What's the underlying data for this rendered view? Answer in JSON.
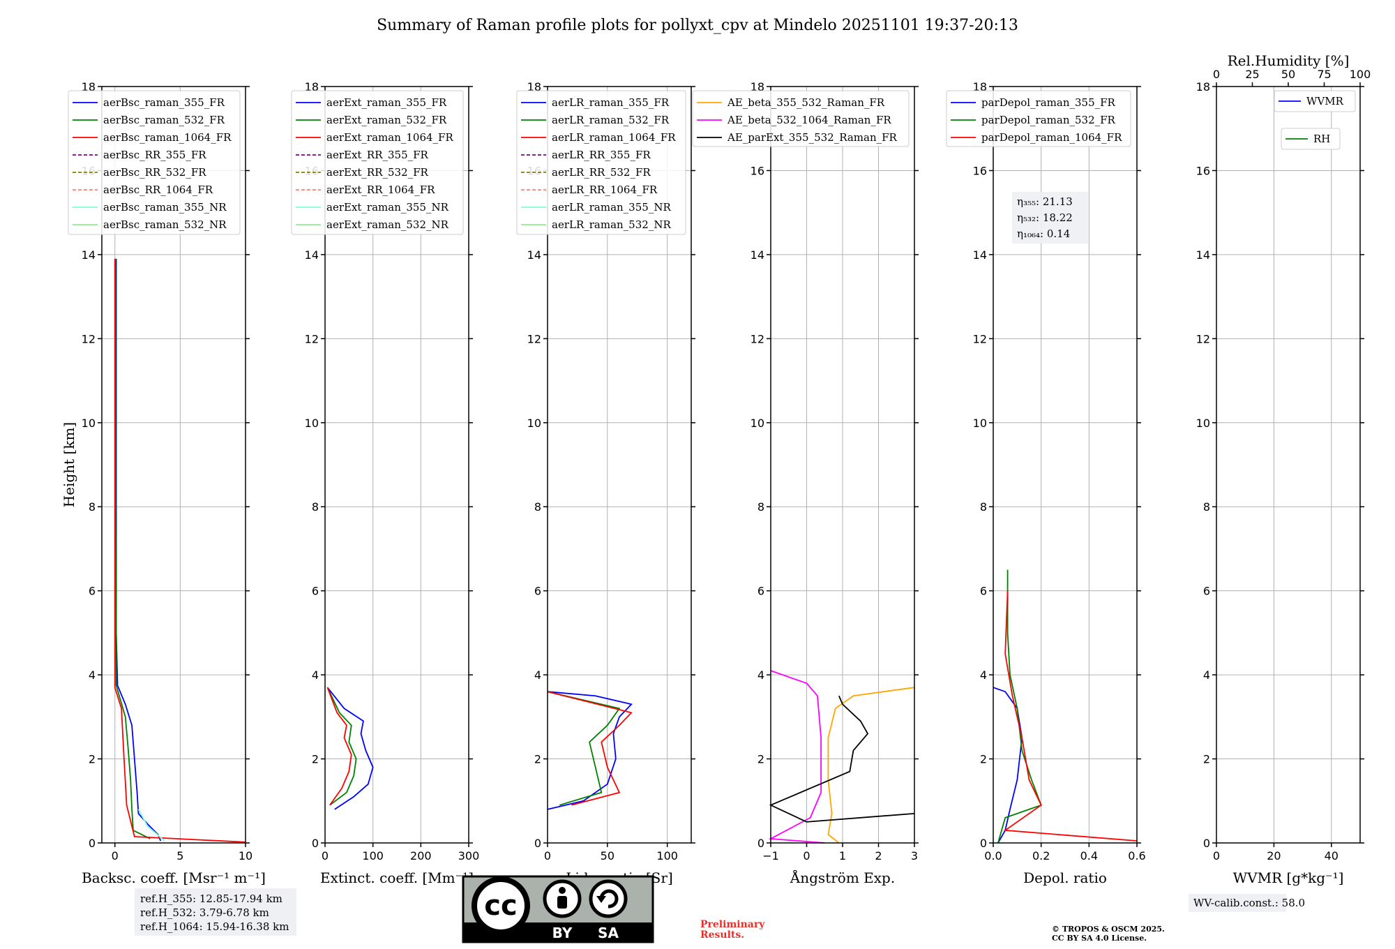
{
  "title": "Summary of Raman profile plots for pollyxt_cpv at Mindelo 20251101 19:37-20:13",
  "chart_data": [
    {
      "type": "line",
      "xlabel": "Backsc. coeff. [Msr⁻¹ m⁻¹]",
      "ylabel": "Height [km]",
      "xlim": [
        -1,
        10
      ],
      "ylim": [
        0,
        18
      ],
      "xticks": [
        "0",
        "5",
        "10"
      ],
      "yticks": [
        "0",
        "2",
        "4",
        "6",
        "8",
        "10",
        "12",
        "14",
        "16",
        "18"
      ],
      "legend": [
        {
          "name": "aerBsc_raman_355_FR",
          "color": "#0000ff",
          "style": "solid"
        },
        {
          "name": "aerBsc_raman_532_FR",
          "color": "#008000",
          "style": "solid"
        },
        {
          "name": "aerBsc_raman_1064_FR",
          "color": "#ff0000",
          "style": "solid"
        },
        {
          "name": "aerBsc_RR_355_FR",
          "color": "#800080",
          "style": "dashed"
        },
        {
          "name": "aerBsc_RR_532_FR",
          "color": "#808000",
          "style": "dashed"
        },
        {
          "name": "aerBsc_RR_1064_FR",
          "color": "#fa8072",
          "style": "dashed"
        },
        {
          "name": "aerBsc_raman_355_NR",
          "color": "#7fffd4",
          "style": "solid"
        },
        {
          "name": "aerBsc_raman_532_NR",
          "color": "#90ee90",
          "style": "solid"
        }
      ],
      "series": [
        {
          "name": "aerBsc_raman_355_FR",
          "color": "#0000ff",
          "points": [
            [
              3.5,
              0.05
            ],
            [
              3.3,
              0.2
            ],
            [
              2.5,
              0.45
            ],
            [
              1.8,
              0.7
            ],
            [
              1.7,
              1.2
            ],
            [
              1.5,
              2
            ],
            [
              1.3,
              2.8
            ],
            [
              0.8,
              3.3
            ],
            [
              0.2,
              3.75
            ],
            [
              0.1,
              5
            ],
            [
              0.1,
              10
            ],
            [
              0.1,
              13.9
            ]
          ]
        },
        {
          "name": "aerBsc_raman_532_FR",
          "color": "#008000",
          "points": [
            [
              2.7,
              0.1
            ],
            [
              1.4,
              0.3
            ],
            [
              1.3,
              0.8
            ],
            [
              1.2,
              1.5
            ],
            [
              1.0,
              2.3
            ],
            [
              0.8,
              3
            ],
            [
              0.1,
              3.75
            ],
            [
              0.05,
              8
            ],
            [
              0.05,
              13.9
            ]
          ]
        },
        {
          "name": "aerBsc_raman_1064_FR",
          "color": "#ff0000",
          "points": [
            [
              10,
              0.02
            ],
            [
              1.5,
              0.15
            ],
            [
              0.9,
              0.9
            ],
            [
              0.7,
              2
            ],
            [
              0.5,
              3.2
            ],
            [
              0,
              3.7
            ],
            [
              0,
              13.9
            ]
          ]
        },
        {
          "name": "aerBsc_raman_355_NR",
          "color": "#7fffd4",
          "points": [
            [
              3.8,
              0.05
            ],
            [
              2.5,
              0.4
            ],
            [
              1.8,
              0.8
            ]
          ]
        }
      ]
    },
    {
      "type": "line",
      "xlabel": "Extinct. coeff. [Mm⁻¹]",
      "xlim": [
        0,
        300
      ],
      "ylim": [
        0,
        18
      ],
      "xticks": [
        "0",
        "100",
        "200",
        "300"
      ],
      "yticks": [
        "0",
        "2",
        "4",
        "6",
        "8",
        "10",
        "12",
        "14",
        "16",
        "18"
      ],
      "legend": [
        {
          "name": "aerExt_raman_355_FR",
          "color": "#0000ff",
          "style": "solid"
        },
        {
          "name": "aerExt_raman_532_FR",
          "color": "#008000",
          "style": "solid"
        },
        {
          "name": "aerExt_raman_1064_FR",
          "color": "#ff0000",
          "style": "solid"
        },
        {
          "name": "aerExt_RR_355_FR",
          "color": "#800080",
          "style": "dashed"
        },
        {
          "name": "aerExt_RR_532_FR",
          "color": "#808000",
          "style": "dashed"
        },
        {
          "name": "aerExt_RR_1064_FR",
          "color": "#fa8072",
          "style": "dashed"
        },
        {
          "name": "aerExt_raman_355_NR",
          "color": "#7fffd4",
          "style": "solid"
        },
        {
          "name": "aerExt_raman_532_NR",
          "color": "#90ee90",
          "style": "solid"
        }
      ],
      "series": [
        {
          "name": "aerExt_raman_355_FR",
          "color": "#0000ff",
          "points": [
            [
              5,
              3.7
            ],
            [
              40,
              3.2
            ],
            [
              80,
              2.9
            ],
            [
              75,
              2.6
            ],
            [
              85,
              2.2
            ],
            [
              100,
              1.8
            ],
            [
              90,
              1.4
            ],
            [
              60,
              1.1
            ],
            [
              20,
              0.8
            ]
          ]
        },
        {
          "name": "aerExt_raman_532_FR",
          "color": "#008000",
          "points": [
            [
              5,
              3.7
            ],
            [
              30,
              3.1
            ],
            [
              55,
              2.8
            ],
            [
              50,
              2.4
            ],
            [
              65,
              2.0
            ],
            [
              60,
              1.6
            ],
            [
              45,
              1.2
            ],
            [
              10,
              0.9
            ]
          ]
        },
        {
          "name": "aerExt_raman_1064_FR",
          "color": "#ff0000",
          "points": [
            [
              5,
              3.7
            ],
            [
              25,
              3.1
            ],
            [
              45,
              2.8
            ],
            [
              40,
              2.5
            ],
            [
              55,
              2.1
            ],
            [
              50,
              1.7
            ],
            [
              35,
              1.3
            ],
            [
              10,
              0.9
            ]
          ]
        }
      ]
    },
    {
      "type": "line",
      "xlabel": "Lidar ratio [Sr]",
      "xlim": [
        0,
        120
      ],
      "ylim": [
        0,
        18
      ],
      "xticks": [
        "0",
        "50",
        "100"
      ],
      "yticks": [
        "0",
        "2",
        "4",
        "6",
        "8",
        "10",
        "12",
        "14",
        "16",
        "18"
      ],
      "legend": [
        {
          "name": "aerLR_raman_355_FR",
          "color": "#0000ff",
          "style": "solid"
        },
        {
          "name": "aerLR_raman_532_FR",
          "color": "#008000",
          "style": "solid"
        },
        {
          "name": "aerLR_raman_1064_FR",
          "color": "#ff0000",
          "style": "solid"
        },
        {
          "name": "aerLR_RR_355_FR",
          "color": "#800080",
          "style": "dashed"
        },
        {
          "name": "aerLR_RR_532_FR",
          "color": "#808000",
          "style": "dashed"
        },
        {
          "name": "aerLR_RR_1064_FR",
          "color": "#fa8072",
          "style": "dashed"
        },
        {
          "name": "aerLR_raman_355_NR",
          "color": "#7fffd4",
          "style": "solid"
        },
        {
          "name": "aerLR_raman_532_NR",
          "color": "#90ee90",
          "style": "solid"
        }
      ],
      "series": [
        {
          "name": "aerLR_raman_355_FR",
          "color": "#0000ff",
          "points": [
            [
              0,
              0.8
            ],
            [
              30,
              1.0
            ],
            [
              50,
              1.4
            ],
            [
              57,
              2.0
            ],
            [
              55,
              2.6
            ],
            [
              60,
              3.0
            ],
            [
              70,
              3.3
            ],
            [
              40,
              3.5
            ],
            [
              0,
              3.6
            ]
          ]
        },
        {
          "name": "aerLR_raman_532_FR",
          "color": "#008000",
          "points": [
            [
              10,
              0.9
            ],
            [
              45,
              1.2
            ],
            [
              40,
              1.8
            ],
            [
              35,
              2.4
            ],
            [
              50,
              2.8
            ],
            [
              60,
              3.2
            ],
            [
              0,
              3.6
            ]
          ]
        },
        {
          "name": "aerLR_raman_1064_FR",
          "color": "#ff0000",
          "points": [
            [
              20,
              0.9
            ],
            [
              60,
              1.2
            ],
            [
              50,
              1.8
            ],
            [
              45,
              2.4
            ],
            [
              60,
              2.8
            ],
            [
              70,
              3.1
            ],
            [
              0,
              3.6
            ]
          ]
        }
      ]
    },
    {
      "type": "line",
      "xlabel": "Ångström Exp.",
      "xlim": [
        -1,
        3
      ],
      "ylim": [
        0,
        18
      ],
      "xticks": [
        "−1",
        "0",
        "1",
        "2",
        "3"
      ],
      "yticks": [
        "0",
        "2",
        "4",
        "6",
        "8",
        "10",
        "12",
        "14",
        "16",
        "18"
      ],
      "legend": [
        {
          "name": "AE_beta_355_532_Raman_FR",
          "color": "#ffa500",
          "style": "solid"
        },
        {
          "name": "AE_beta_532_1064_Raman_FR",
          "color": "#ff00ff",
          "style": "solid"
        },
        {
          "name": "AE_parExt_355_532_Raman_FR",
          "color": "#000000",
          "style": "solid"
        }
      ],
      "series": [
        {
          "name": "AE_beta_355_532_Raman_FR",
          "color": "#ffa500",
          "points": [
            [
              0.9,
              0
            ],
            [
              0.6,
              0.2
            ],
            [
              0.7,
              0.7
            ],
            [
              0.6,
              1.5
            ],
            [
              0.6,
              2.5
            ],
            [
              0.8,
              3.2
            ],
            [
              1.3,
              3.5
            ],
            [
              3,
              3.7
            ]
          ]
        },
        {
          "name": "AE_beta_532_1064_Raman_FR",
          "color": "#ff00ff",
          "points": [
            [
              0.5,
              0
            ],
            [
              -1,
              0.1
            ],
            [
              0.1,
              0.6
            ],
            [
              0.4,
              1.2
            ],
            [
              0.4,
              2.5
            ],
            [
              0.3,
              3.5
            ],
            [
              0,
              3.8
            ],
            [
              -1,
              4.1
            ]
          ]
        },
        {
          "name": "AE_parExt_355_532_Raman_FR",
          "color": "#000000",
          "points": [
            [
              3,
              0.7
            ],
            [
              0,
              0.5
            ],
            [
              -1,
              0.9
            ],
            [
              1.2,
              1.7
            ],
            [
              1.3,
              2.2
            ],
            [
              1.7,
              2.6
            ],
            [
              1.5,
              2.9
            ],
            [
              1.0,
              3.3
            ],
            [
              0.9,
              3.5
            ]
          ]
        }
      ]
    },
    {
      "type": "line",
      "xlabel": "Depol. ratio",
      "xlim": [
        0,
        0.6
      ],
      "ylim": [
        0,
        18
      ],
      "xticks": [
        "0.0",
        "0.2",
        "0.4",
        "0.6"
      ],
      "yticks": [
        "0",
        "2",
        "4",
        "6",
        "8",
        "10",
        "12",
        "14",
        "16",
        "18"
      ],
      "legend": [
        {
          "name": "parDepol_raman_355_FR",
          "color": "#0000ff",
          "style": "solid"
        },
        {
          "name": "parDepol_raman_532_FR",
          "color": "#008000",
          "style": "solid"
        },
        {
          "name": "parDepol_raman_1064_FR",
          "color": "#ff0000",
          "style": "solid"
        }
      ],
      "annotations": [
        {
          "label": "η₃₅₅: 21.13"
        },
        {
          "label": "η₅₃₂: 18.22"
        },
        {
          "label": "η₁₀₆₄: 0.14"
        }
      ],
      "series": [
        {
          "name": "parDepol_raman_355_FR",
          "color": "#0000ff",
          "points": [
            [
              0.02,
              0
            ],
            [
              0.05,
              0.3
            ],
            [
              0.07,
              0.8
            ],
            [
              0.1,
              1.5
            ],
            [
              0.12,
              2.5
            ],
            [
              0.1,
              3.2
            ],
            [
              0.05,
              3.6
            ],
            [
              0,
              3.7
            ]
          ]
        },
        {
          "name": "parDepol_raman_532_FR",
          "color": "#008000",
          "points": [
            [
              0.02,
              0
            ],
            [
              0.05,
              0.6
            ],
            [
              0.2,
              0.9
            ],
            [
              0.16,
              1.5
            ],
            [
              0.12,
              2.2
            ],
            [
              0.1,
              3.2
            ],
            [
              0.07,
              4.0
            ],
            [
              0.06,
              5
            ],
            [
              0.06,
              6.5
            ]
          ]
        },
        {
          "name": "parDepol_raman_1064_FR",
          "color": "#ff0000",
          "points": [
            [
              0.6,
              0.05
            ],
            [
              0.05,
              0.3
            ],
            [
              0.2,
              0.9
            ],
            [
              0.15,
              1.5
            ],
            [
              0.12,
              2.5
            ],
            [
              0.08,
              3.5
            ],
            [
              0.05,
              4.5
            ],
            [
              0.06,
              6
            ]
          ]
        }
      ]
    },
    {
      "type": "line",
      "xlabel": "WVMR [g*kg⁻¹]",
      "x2label": "Rel.Humidity [%]",
      "xlim": [
        0,
        50
      ],
      "ylim": [
        0,
        18
      ],
      "xticks": [
        "0",
        "20",
        "40"
      ],
      "x2ticks": [
        "0",
        "25",
        "50",
        "75",
        "100"
      ],
      "yticks": [
        "0",
        "2",
        "4",
        "6",
        "8",
        "10",
        "12",
        "14",
        "16",
        "18"
      ],
      "legend": [
        {
          "name": "WVMR",
          "color": "#0000ff",
          "style": "solid"
        },
        {
          "name": "RH",
          "color": "#008000",
          "style": "solid"
        }
      ],
      "series": []
    }
  ],
  "footer": {
    "ref_heights": [
      "ref.H_355: 12.85-17.94 km",
      "ref.H_532: 3.79-6.78 km",
      "ref.H_1064: 15.94-16.38 km"
    ],
    "license_by": "BY",
    "license_sa": "SA",
    "license_cc": "cc",
    "preliminary_1": "Preliminary",
    "preliminary_2": "Results.",
    "copyright_1": "© TROPOS & OSCM 2025.",
    "copyright_2": "CC BY SA 4.0 License.",
    "wv_calib": "WV-calib.const.: 58.0"
  }
}
